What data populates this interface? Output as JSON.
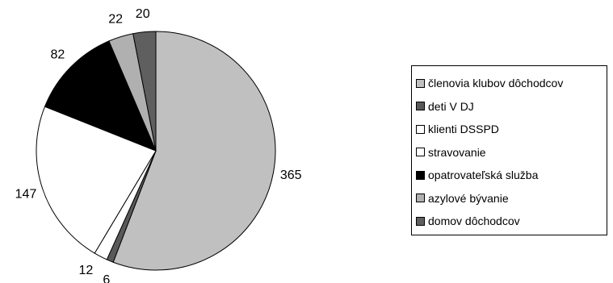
{
  "chart_data": {
    "type": "pie",
    "title": "",
    "legend_position": "right",
    "slices": [
      {
        "label": "členovia klubov dôchodcov",
        "value": 365,
        "color": "#c0c0c0"
      },
      {
        "label": "deti V DJ",
        "value": 6,
        "color": "#595959"
      },
      {
        "label": "klienti DSSPD",
        "value": 12,
        "color": "#ffffff"
      },
      {
        "label": "stravovanie",
        "value": 147,
        "color": "#ffffff"
      },
      {
        "label": "opatrovateľská služba",
        "value": 82,
        "color": "#000000"
      },
      {
        "label": "azylové bývanie",
        "value": 22,
        "color": "#b0b0b0"
      },
      {
        "label": "domov dôchodcov",
        "value": 20,
        "color": "#5f5f5f"
      }
    ]
  }
}
